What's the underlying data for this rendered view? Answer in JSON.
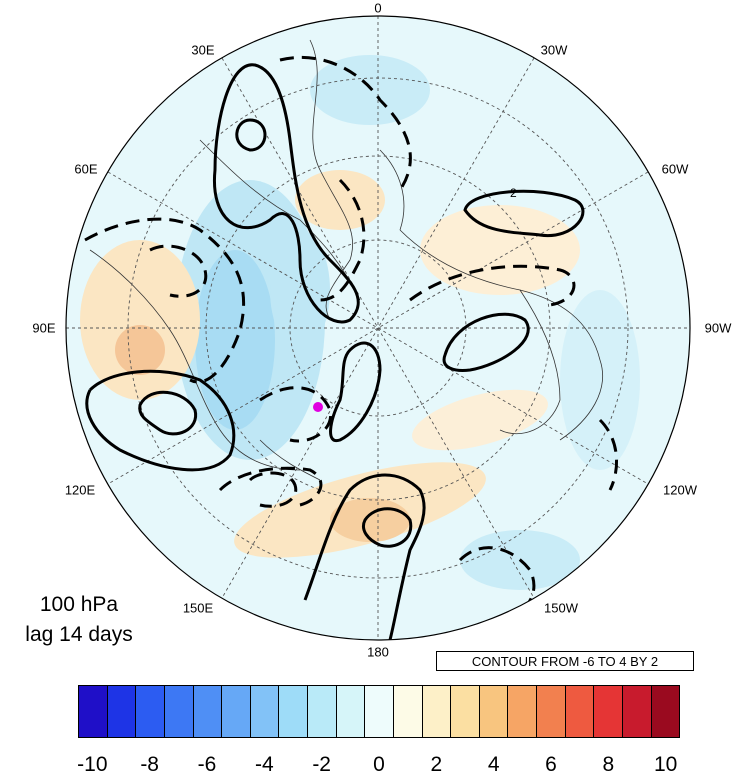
{
  "map": {
    "projection": "north-polar-stereographic",
    "longitude_labels": [
      {
        "id": "0",
        "text": "0"
      },
      {
        "id": "30w",
        "text": "30W"
      },
      {
        "id": "60w",
        "text": "60W"
      },
      {
        "id": "90w",
        "text": "90W"
      },
      {
        "id": "120w",
        "text": "120W"
      },
      {
        "id": "150w",
        "text": "150W"
      },
      {
        "id": "180",
        "text": "180"
      },
      {
        "id": "150e",
        "text": "150E"
      },
      {
        "id": "120e",
        "text": "120E"
      },
      {
        "id": "90e",
        "text": "90E"
      },
      {
        "id": "60e",
        "text": "60E"
      },
      {
        "id": "30e",
        "text": "30E"
      }
    ],
    "contour_label": "2",
    "marker_color": "#e000e0"
  },
  "panel": {
    "level": "100 hPa",
    "lag": "lag 14 days"
  },
  "contour_note": "CONTOUR FROM -6 TO 4 BY 2",
  "colorbar": {
    "colors": [
      "#1f0fc8",
      "#1e34e6",
      "#2c5cf2",
      "#3d78f4",
      "#4f8ff5",
      "#66a8f6",
      "#82c2f7",
      "#9edcf8",
      "#b9eaf8",
      "#d6f5f9",
      "#eefcfc",
      "#fdfbe7",
      "#fdf0c8",
      "#fbdfa2",
      "#f8c57f",
      "#f6a565",
      "#f2804f",
      "#ee5a40",
      "#e53535",
      "#c81b2d",
      "#9a0a1f"
    ],
    "tick_labels": [
      "-10",
      "-8",
      "-6",
      "-4",
      "-2",
      "0",
      "2",
      "4",
      "6",
      "8",
      "10"
    ]
  }
}
